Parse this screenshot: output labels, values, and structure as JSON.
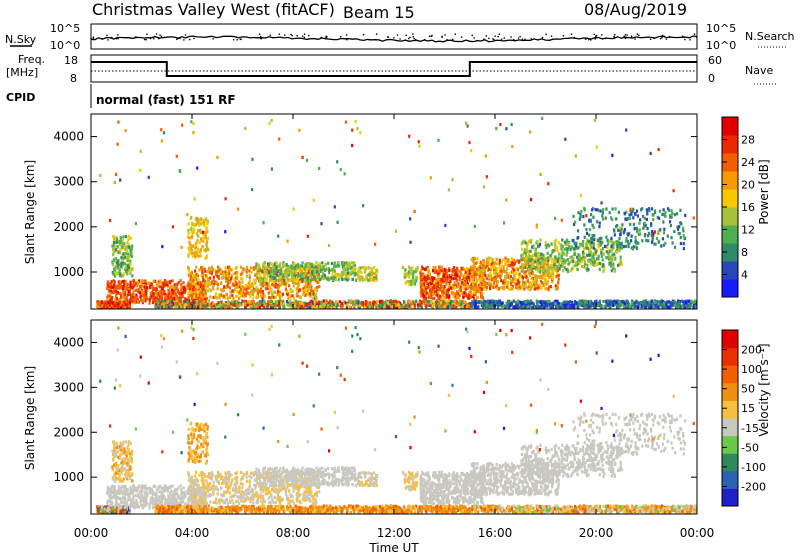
{
  "header": {
    "title": "Christmas Valley West (fitACF)",
    "beam": "Beam 15",
    "date": "08/Aug/2019"
  },
  "panels": {
    "nsky_label": "N.Sky",
    "nsearch_label": "N.Search",
    "noise_ticks": [
      "10^5",
      "10^0"
    ],
    "freq_label": "Freq.",
    "freq_unit": "[MHz]",
    "freq_ticks": [
      "18",
      "8"
    ],
    "nave_label": "Nave",
    "nave_ticks": [
      "60",
      "0"
    ],
    "cpid_label": "CPID",
    "cpid_value": "normal (fast) 151 RF"
  },
  "chart_data": [
    {
      "type": "heatmap",
      "name": "power",
      "ylabel": "Slant Range [km]",
      "xlabel": "",
      "ylim": [
        180,
        4500
      ],
      "yticks": [
        "1000",
        "2000",
        "3000",
        "4000"
      ],
      "colorbar": {
        "label": "Power [dB]",
        "ticks": [
          "4",
          "8",
          "12",
          "16",
          "20",
          "24",
          "28"
        ],
        "colors": [
          "#1a1aff",
          "#2848b8",
          "#2f8a6a",
          "#4fae4f",
          "#a8c23a",
          "#f5c800",
          "#f59a00",
          "#f06000",
          "#e82a00",
          "#e00000"
        ]
      }
    },
    {
      "type": "heatmap",
      "name": "velocity",
      "ylabel": "Slant Range [km]",
      "xlabel": "Time UT",
      "ylim": [
        180,
        4500
      ],
      "yticks": [
        "1000",
        "2000",
        "3000",
        "4000"
      ],
      "xticks": [
        "00:00",
        "04:00",
        "08:00",
        "12:00",
        "16:00",
        "20:00",
        "00:00"
      ],
      "colorbar": {
        "label": "Velocity [m s⁻¹]",
        "ticks": [
          "200",
          "100",
          "50",
          "15",
          "-15",
          "-50",
          "-100",
          "-200"
        ],
        "colors": [
          "#2020c8",
          "#2a62b2",
          "#2e8a5a",
          "#6cc84a",
          "#c8c8c0",
          "#f5c040",
          "#f09010",
          "#f06000",
          "#e83000",
          "#e00000"
        ]
      }
    }
  ]
}
